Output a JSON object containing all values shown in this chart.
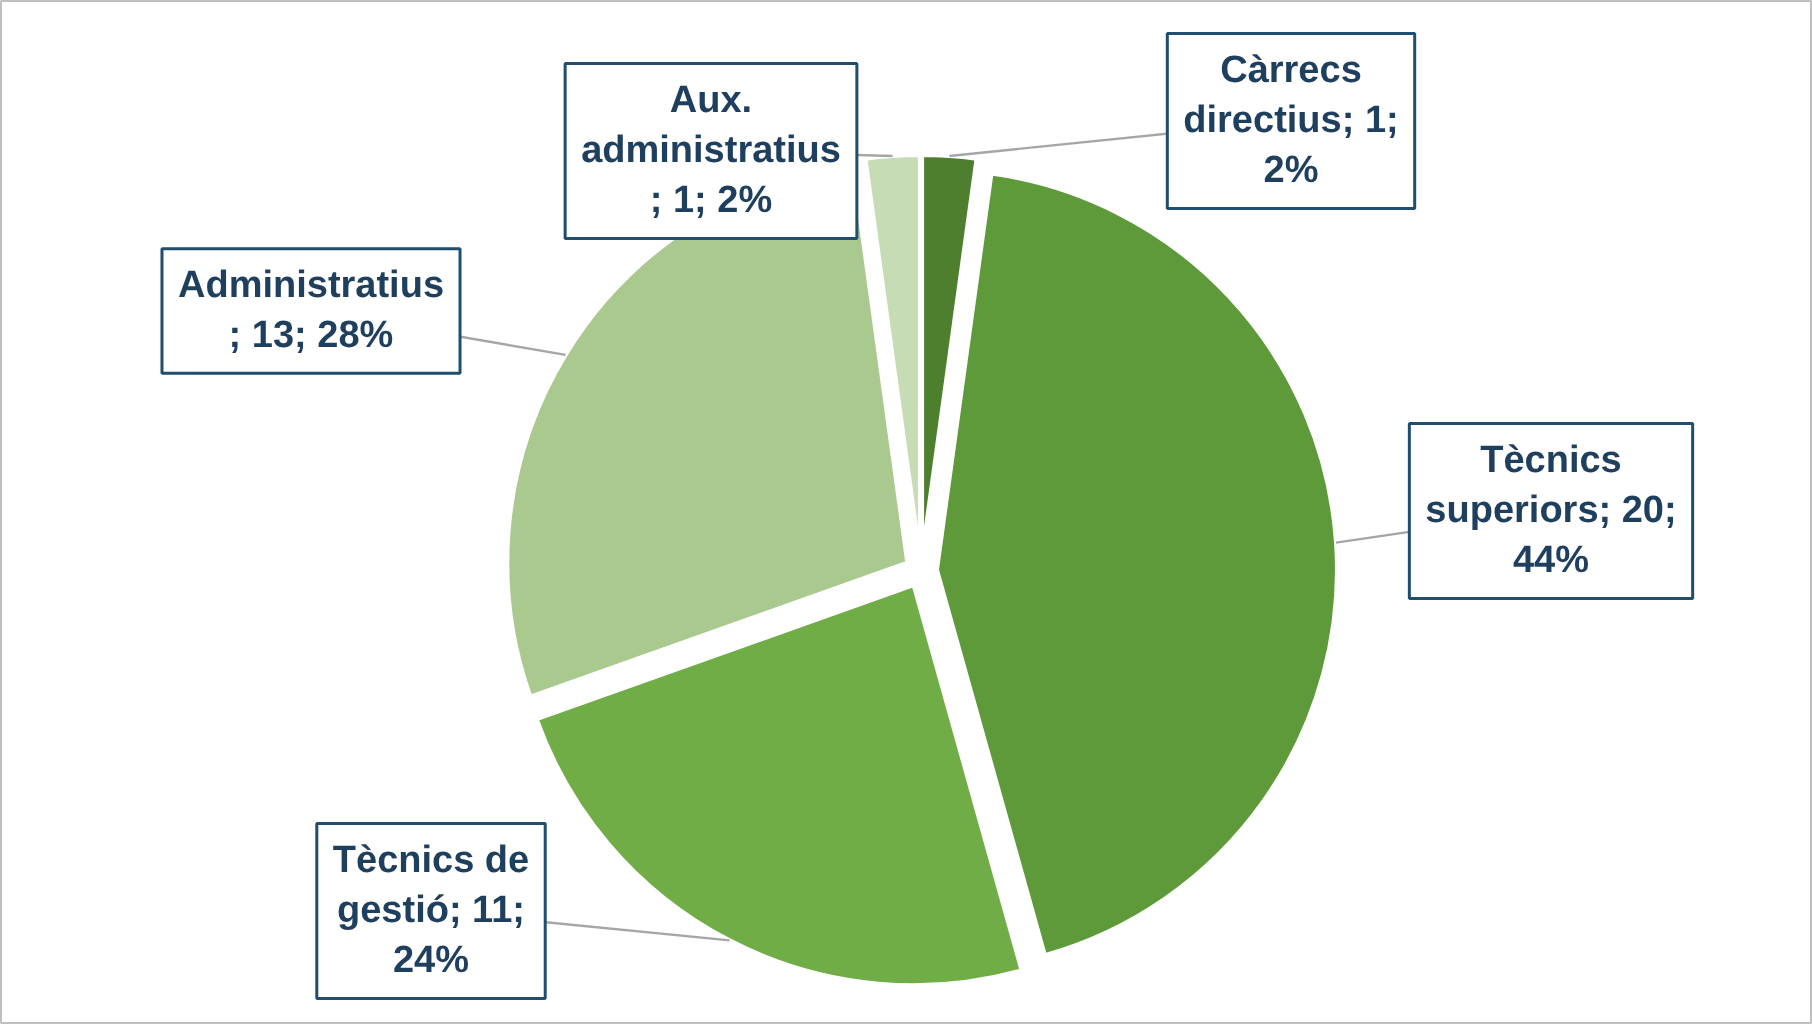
{
  "chart_data": {
    "type": "pie",
    "categories": [
      "Càrrecs directius",
      "Tècnics superiors",
      "Tècnics de gestió",
      "Administratius",
      "Aux. administratius"
    ],
    "values": [
      1,
      20,
      11,
      13,
      1
    ],
    "colors": [
      "#4e7f2e",
      "#5f9a3a",
      "#70ad47",
      "#a9c98f",
      "#c5dcb4"
    ],
    "value_labels": [
      "; 1; 2%",
      "; 20; 44%",
      "; 11; 24%",
      " ; 13; 28%",
      " ; 1; 2%"
    ]
  }
}
